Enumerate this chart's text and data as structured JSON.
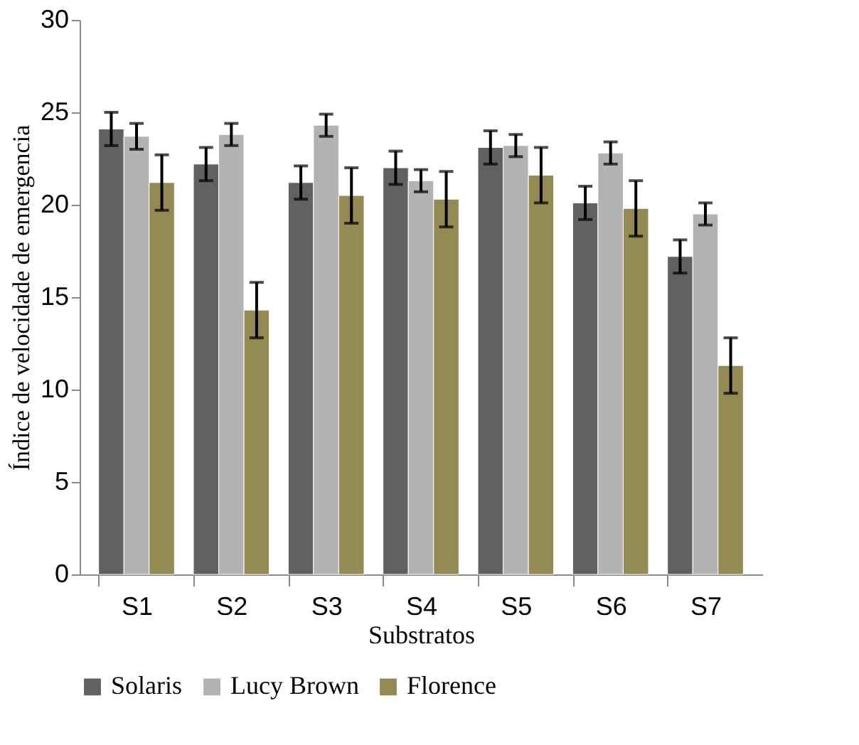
{
  "chart_data": {
    "type": "bar",
    "xlabel": "Substratos",
    "ylabel": "Índice de velocidade de emergencia",
    "categories": [
      "S1",
      "S2",
      "S3",
      "S4",
      "S5",
      "S6",
      "S7"
    ],
    "series": [
      {
        "name": "Solaris",
        "color": "#616161",
        "values": [
          24.1,
          22.2,
          21.2,
          22.0,
          23.1,
          20.1,
          17.2
        ],
        "errors": [
          0.9,
          0.9,
          0.9,
          0.9,
          0.9,
          0.9,
          0.9
        ]
      },
      {
        "name": "Lucy Brown",
        "color": "#b3b3b3",
        "values": [
          23.7,
          23.8,
          24.3,
          21.3,
          23.2,
          22.8,
          19.5
        ],
        "errors": [
          0.7,
          0.6,
          0.6,
          0.6,
          0.6,
          0.6,
          0.6
        ]
      },
      {
        "name": "Florence",
        "color": "#948a54",
        "values": [
          21.2,
          14.3,
          20.5,
          20.3,
          21.6,
          19.8,
          11.3
        ],
        "errors": [
          1.5,
          1.5,
          1.5,
          1.5,
          1.5,
          1.5,
          1.5
        ]
      }
    ],
    "ylim": [
      0,
      30
    ],
    "yticks": [
      0,
      5,
      10,
      15,
      20,
      25,
      30
    ],
    "grid": false,
    "legend": "bottom"
  }
}
